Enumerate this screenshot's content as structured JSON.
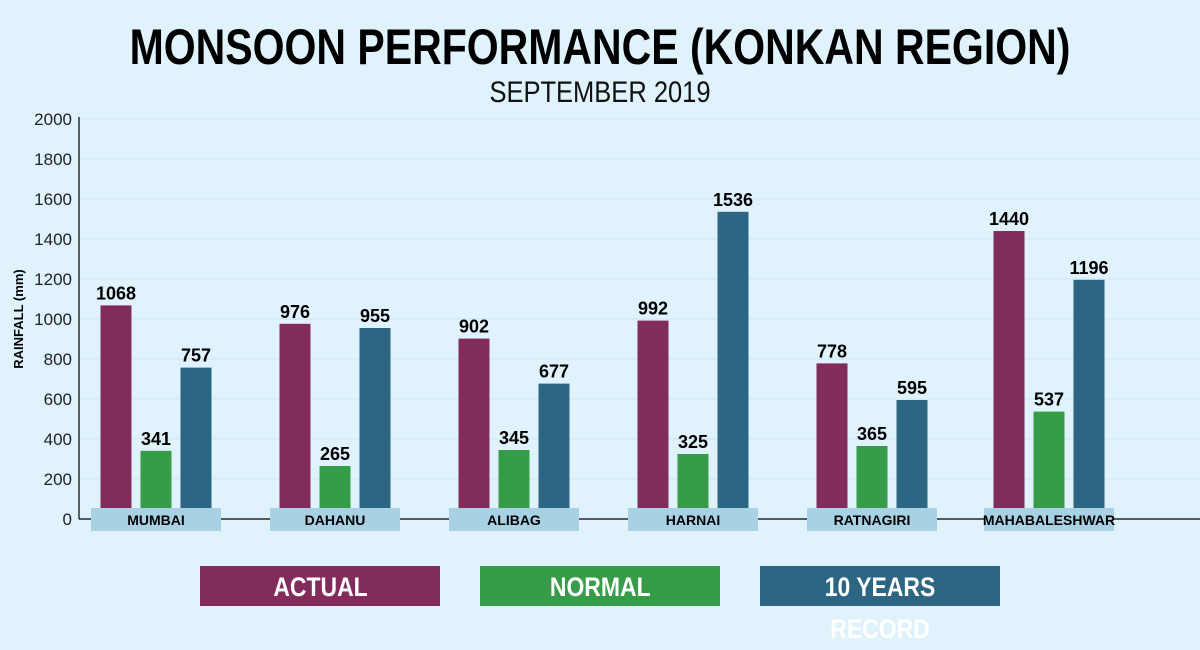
{
  "chart_data": {
    "type": "bar",
    "title": "MONSOON PERFORMANCE (KONKAN REGION)",
    "subtitle": "SEPTEMBER 2019",
    "ylabel": "RAINFALL (mm)",
    "xlabel": "",
    "ylim": [
      0,
      2000
    ],
    "yticks": [
      0,
      200,
      400,
      600,
      800,
      1000,
      1200,
      1400,
      1600,
      1800,
      2000
    ],
    "grid": true,
    "legend_placement": "bottom",
    "categories": [
      "MUMBAI",
      "DAHANU",
      "ALIBAG",
      "HARNAI",
      "RATNAGIRI",
      "MAHABALESHWAR"
    ],
    "series": [
      {
        "name": "ACTUAL",
        "color": "#822c5b",
        "values": [
          1068,
          976,
          902,
          992,
          778,
          1440
        ]
      },
      {
        "name": "NORMAL",
        "color": "#369c47",
        "values": [
          341,
          265,
          345,
          325,
          365,
          537
        ]
      },
      {
        "name": "10 YEARS RECORD",
        "color": "#2d6682",
        "values": [
          757,
          955,
          677,
          1536,
          595,
          1196
        ]
      }
    ],
    "category_band_color": "#a8d1e4"
  }
}
